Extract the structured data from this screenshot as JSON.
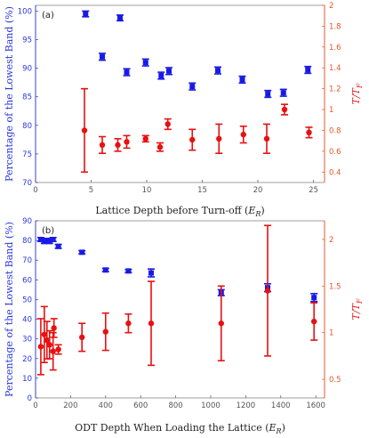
{
  "colors": {
    "blue_series": "#1a1ae6",
    "red_series": "#e81010",
    "left_axis": "#2b36d9",
    "right_axis": "#e8542a",
    "frame": "#888888"
  },
  "chart_data": [
    {
      "type": "scatter",
      "panel_label": "(a)",
      "xlabel": "Lattice Depth before Turn-off (",
      "xlabel_unit": "E",
      "xlabel_sub": "R",
      "xlabel_close": ")",
      "ylabel_left": "Percentage of the Lowest Band (%)",
      "ylabel_right": "T/T",
      "ylabel_right_sub": "F",
      "xlim": [
        0,
        26
      ],
      "ylim_left": [
        70,
        101
      ],
      "ylim_right": [
        0.3,
        2.0
      ],
      "xticks": [
        0,
        5,
        10,
        15,
        20,
        25
      ],
      "yticks_left": [
        70,
        75,
        80,
        85,
        90,
        95,
        100
      ],
      "yticks_right": [
        0.4,
        0.6,
        0.8,
        1,
        1.2,
        1.4,
        1.6,
        1.8,
        2
      ],
      "grid": false,
      "series": [
        {
          "axis": "left",
          "marker": "square",
          "points": [
            {
              "x": 4.5,
              "y": 99.5,
              "err": 0.5
            },
            {
              "x": 6.0,
              "y": 92.0,
              "err": 0.6
            },
            {
              "x": 7.6,
              "y": 98.8,
              "err": 0.5
            },
            {
              "x": 8.2,
              "y": 89.3,
              "err": 0.6
            },
            {
              "x": 9.9,
              "y": 91.0,
              "err": 0.6
            },
            {
              "x": 11.3,
              "y": 88.7,
              "err": 0.6
            },
            {
              "x": 12.0,
              "y": 89.5,
              "err": 0.6
            },
            {
              "x": 14.1,
              "y": 86.8,
              "err": 0.6
            },
            {
              "x": 16.4,
              "y": 89.6,
              "err": 0.6
            },
            {
              "x": 18.6,
              "y": 88.0,
              "err": 0.6
            },
            {
              "x": 20.9,
              "y": 85.5,
              "err": 0.6
            },
            {
              "x": 22.3,
              "y": 85.7,
              "err": 0.6
            },
            {
              "x": 24.5,
              "y": 89.7,
              "err": 0.6
            }
          ]
        },
        {
          "axis": "right",
          "marker": "circle",
          "points": [
            {
              "x": 4.4,
              "y": 0.8,
              "err": 0.4
            },
            {
              "x": 6.0,
              "y": 0.66,
              "err": 0.08
            },
            {
              "x": 7.4,
              "y": 0.66,
              "err": 0.06
            },
            {
              "x": 8.2,
              "y": 0.69,
              "err": 0.06
            },
            {
              "x": 9.9,
              "y": 0.72,
              "err": 0.03
            },
            {
              "x": 11.2,
              "y": 0.64,
              "err": 0.04
            },
            {
              "x": 11.9,
              "y": 0.86,
              "err": 0.05
            },
            {
              "x": 14.1,
              "y": 0.71,
              "err": 0.1
            },
            {
              "x": 16.5,
              "y": 0.72,
              "err": 0.14
            },
            {
              "x": 18.7,
              "y": 0.76,
              "err": 0.08
            },
            {
              "x": 20.8,
              "y": 0.72,
              "err": 0.14
            },
            {
              "x": 22.4,
              "y": 1.0,
              "err": 0.05
            },
            {
              "x": 24.6,
              "y": 0.78,
              "err": 0.05
            }
          ]
        }
      ]
    },
    {
      "type": "scatter",
      "panel_label": "(b)",
      "xlabel": "ODT Depth When Loading the Lattice (",
      "xlabel_unit": "E",
      "xlabel_sub": "R",
      "xlabel_close": ")",
      "ylabel_left": "Percentage of the Lowest Band (%)",
      "ylabel_right": "T/T",
      "ylabel_right_sub": "F",
      "xlim": [
        0,
        1650
      ],
      "ylim_left": [
        0,
        90
      ],
      "ylim_right": [
        0.3,
        2.2
      ],
      "xticks": [
        0,
        200,
        400,
        600,
        800,
        1000,
        1200,
        1400,
        1600
      ],
      "yticks_left": [
        0,
        10,
        20,
        30,
        40,
        50,
        60,
        70,
        80,
        90
      ],
      "yticks_right": [
        0.5,
        1,
        1.5,
        2
      ],
      "grid": false,
      "series": [
        {
          "axis": "left",
          "marker": "square",
          "points": [
            {
              "x": 30,
              "y": 80.5,
              "err": 1.0
            },
            {
              "x": 50,
              "y": 79.5,
              "err": 1.0
            },
            {
              "x": 65,
              "y": 80.0,
              "err": 1.0
            },
            {
              "x": 80,
              "y": 79.5,
              "err": 1.0
            },
            {
              "x": 100,
              "y": 80.5,
              "err": 1.0
            },
            {
              "x": 130,
              "y": 77.0,
              "err": 1.0
            },
            {
              "x": 265,
              "y": 74.0,
              "err": 0.8
            },
            {
              "x": 400,
              "y": 65.0,
              "err": 0.8
            },
            {
              "x": 530,
              "y": 64.5,
              "err": 0.8
            },
            {
              "x": 660,
              "y": 63.5,
              "err": 2.0
            },
            {
              "x": 1060,
              "y": 53.5,
              "err": 1.5
            },
            {
              "x": 1325,
              "y": 56.0,
              "err": 2.0
            },
            {
              "x": 1590,
              "y": 51.0,
              "err": 2.0
            }
          ]
        },
        {
          "axis": "right",
          "marker": "circle",
          "points": [
            {
              "x": 30,
              "y": 0.85,
              "err": 0.3
            },
            {
              "x": 50,
              "y": 0.98,
              "err": 0.3
            },
            {
              "x": 65,
              "y": 0.92,
              "err": 0.2
            },
            {
              "x": 80,
              "y": 0.87,
              "err": 0.15
            },
            {
              "x": 100,
              "y": 0.8,
              "err": 0.2
            },
            {
              "x": 105,
              "y": 1.05,
              "err": 0.1
            },
            {
              "x": 130,
              "y": 0.82,
              "err": 0.05
            },
            {
              "x": 265,
              "y": 0.95,
              "err": 0.15
            },
            {
              "x": 400,
              "y": 1.01,
              "err": 0.2
            },
            {
              "x": 530,
              "y": 1.1,
              "err": 0.1
            },
            {
              "x": 660,
              "y": 1.1,
              "err": 0.45
            },
            {
              "x": 1060,
              "y": 1.1,
              "err": 0.4
            },
            {
              "x": 1325,
              "y": 1.45,
              "err": 0.7
            },
            {
              "x": 1590,
              "y": 1.12,
              "err": 0.2
            }
          ]
        }
      ]
    }
  ]
}
